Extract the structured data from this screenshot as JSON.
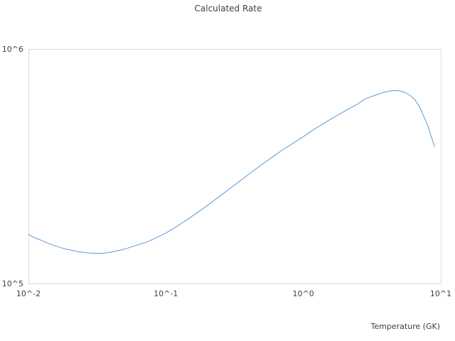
{
  "chart_data": {
    "type": "line",
    "title": "Calculated Rate",
    "xlabel": "Temperature (GK)",
    "ylabel": "",
    "x_scale": "log",
    "y_scale": "log",
    "xlim": [
      0.01,
      10
    ],
    "ylim": [
      100000,
      1000000
    ],
    "x_ticks": [
      {
        "value": 0.01,
        "label": "10^-2"
      },
      {
        "value": 0.1,
        "label": "10^-1"
      },
      {
        "value": 1,
        "label": "10^0"
      },
      {
        "value": 10,
        "label": "10^1"
      }
    ],
    "y_ticks": [
      {
        "value": 100000,
        "label": "10^5"
      },
      {
        "value": 1000000,
        "label": "10^6"
      }
    ],
    "grid": false,
    "legend": "none",
    "series": [
      {
        "color": "#5b9bd5",
        "x": [
          0.01,
          0.011,
          0.012,
          0.014,
          0.016,
          0.018,
          0.02,
          0.023,
          0.027,
          0.03,
          0.035,
          0.04,
          0.045,
          0.05,
          0.06,
          0.07,
          0.08,
          0.1,
          0.12,
          0.15,
          0.2,
          0.25,
          0.3,
          0.4,
          0.5,
          0.6,
          0.7,
          0.8,
          1.0,
          1.2,
          1.5,
          2.0,
          2.5,
          2.8,
          3.5,
          4.0,
          4.5,
          5.0,
          5.5,
          6.0,
          6.5,
          7.0,
          8.0,
          9.0
        ],
        "y": [
          162000,
          157000,
          154000,
          148000,
          144000,
          141000,
          139000,
          136500,
          135000,
          134500,
          134500,
          136000,
          138000,
          140000,
          145000,
          149000,
          154000,
          164000,
          175000,
          191000,
          215000,
          237000,
          257000,
          292000,
          322000,
          347000,
          370000,
          389000,
          423000,
          455000,
          493000,
          544000,
          584000,
          612000,
          642000,
          658000,
          665000,
          663000,
          653000,
          633000,
          606000,
          567000,
          475000,
          383000
        ]
      }
    ]
  }
}
